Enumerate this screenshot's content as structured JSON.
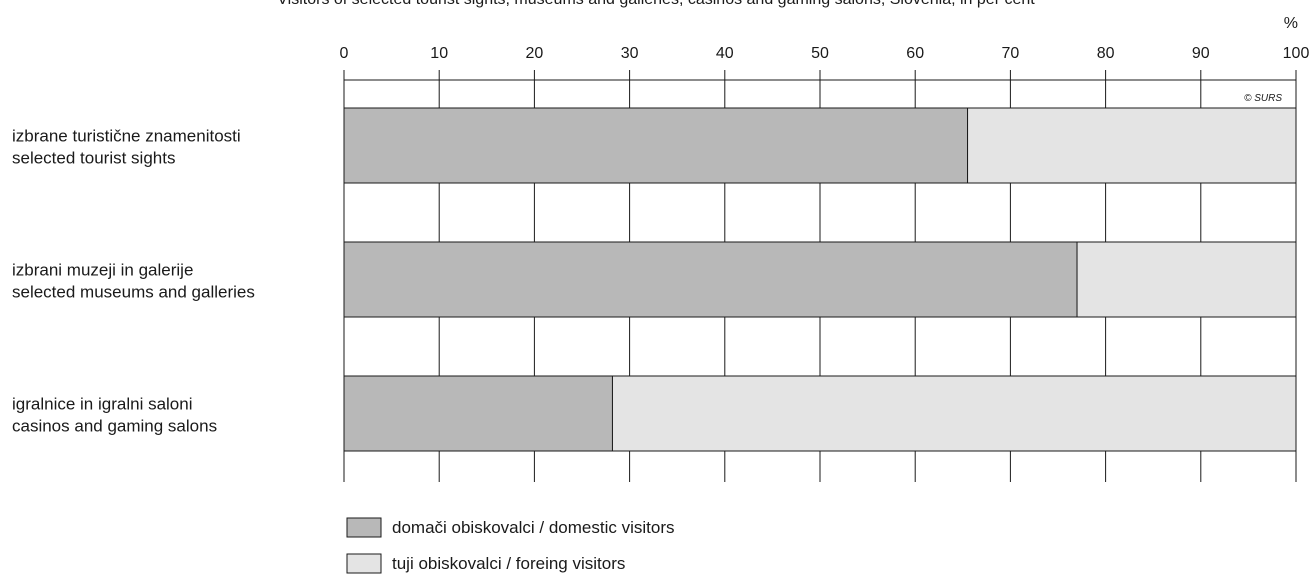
{
  "chart_data": {
    "type": "bar",
    "orientation": "horizontal",
    "stacked": true,
    "percent": true,
    "title": "",
    "unit": "%",
    "xlim": [
      0,
      100
    ],
    "x_ticks": [
      0,
      10,
      20,
      30,
      40,
      50,
      60,
      70,
      80,
      90,
      100
    ],
    "grid": true,
    "categories": [
      [
        "izbrane turistične znamenitosti",
        "selected tourist sights"
      ],
      [
        "izbrani muzeji in galerije",
        "selected museums and galleries"
      ],
      [
        "igralnice in igralni saloni",
        "casinos and gaming salons"
      ]
    ],
    "series": [
      {
        "name": "domači obiskovalci / domestic visitors",
        "color": "#b8b8b8",
        "values": [
          65.5,
          77.0,
          28.2
        ]
      },
      {
        "name": "tuji obiskovalci / foreing visitors",
        "color": "#e4e4e4",
        "values": [
          34.5,
          23.0,
          71.8
        ]
      }
    ],
    "legend_position": "bottom-left",
    "source_note": "© SURS"
  }
}
